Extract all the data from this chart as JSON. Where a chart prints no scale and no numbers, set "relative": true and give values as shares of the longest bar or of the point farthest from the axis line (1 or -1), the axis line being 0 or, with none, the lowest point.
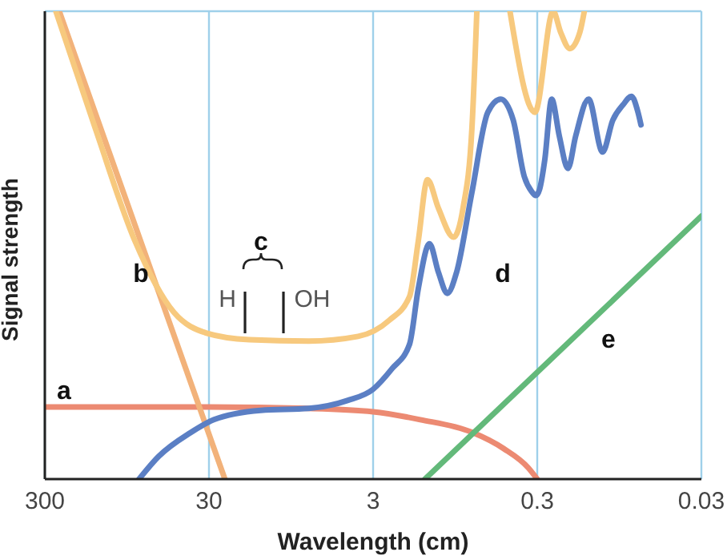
{
  "chart_data": {
    "type": "line",
    "xlabel": "Wavelength (cm)",
    "ylabel": "Signal strength",
    "relative": true,
    "log": "x",
    "xlim": [
      300,
      0.03
    ],
    "xticks": [
      300,
      30,
      3,
      0.3,
      0.03
    ],
    "grid": "x",
    "legend": false,
    "marker": "none",
    "line_style": "solid",
    "series": [
      {
        "color": "#ec8a72",
        "x": [
          300,
          30,
          7.4,
          3,
          1.55,
          0.75,
          0.48,
          0.34,
          0.3
        ],
        "values": [
          0.154,
          0.154,
          0.151,
          0.144,
          0.127,
          0.1,
          0.065,
          0.024,
          0
        ]
      },
      {
        "color": "#f2b27a",
        "x": [
          245,
          24
        ],
        "values": [
          1,
          0
        ]
      },
      {
        "color": "#f7c97e",
        "x": [
          257,
          148,
          85,
          49,
          31,
          17,
          7.4,
          3.7,
          2.4,
          1.8,
          1.59,
          1.4,
          1.2,
          0.97,
          0.85,
          0.75,
          0.7,
          0.55,
          0.44,
          0.31,
          0.24,
          0.216,
          0.19,
          0.165,
          0.155
        ],
        "values": [
          1,
          0.75,
          0.51,
          0.356,
          0.312,
          0.298,
          0.295,
          0.305,
          0.339,
          0.39,
          0.51,
          0.64,
          0.579,
          0.517,
          0.579,
          0.75,
          1,
          null,
          1,
          0.784,
          1,
          0.955,
          0.92,
          0.955,
          1
        ]
      },
      {
        "color": "#5b7fc4",
        "x": [
          80,
          61,
          39,
          28,
          14.5,
          7.4,
          4.3,
          3,
          2.3,
          1.8,
          1.59,
          1.36,
          1.2,
          1.06,
          0.93,
          0.75,
          0.6,
          0.5,
          0.42,
          0.36,
          0.325,
          0.306,
          0.29,
          0.27,
          0.245,
          0.22,
          0.195,
          0.175,
          0.146,
          0.12,
          0.104,
          0.09,
          0.08,
          0.073,
          0.07
        ],
        "values": [
          0,
          0.048,
          0.099,
          0.127,
          0.147,
          0.151,
          0.168,
          0.192,
          0.236,
          0.288,
          0.408,
          0.503,
          0.442,
          0.397,
          0.442,
          0.613,
          0.784,
          0.812,
          0.767,
          0.647,
          0.615,
          0.606,
          0.62,
          0.682,
          0.812,
          0.733,
          0.664,
          0.733,
          0.812,
          0.699,
          0.767,
          0.8,
          0.818,
          0.784,
          0.757
        ]
      },
      {
        "color": "#63b97a",
        "x": [
          1.45,
          0.03
        ],
        "values": [
          0,
          0.562
        ]
      }
    ],
    "annotations": [
      "a",
      "b",
      "c",
      "H",
      "OH",
      "d",
      "e"
    ]
  }
}
